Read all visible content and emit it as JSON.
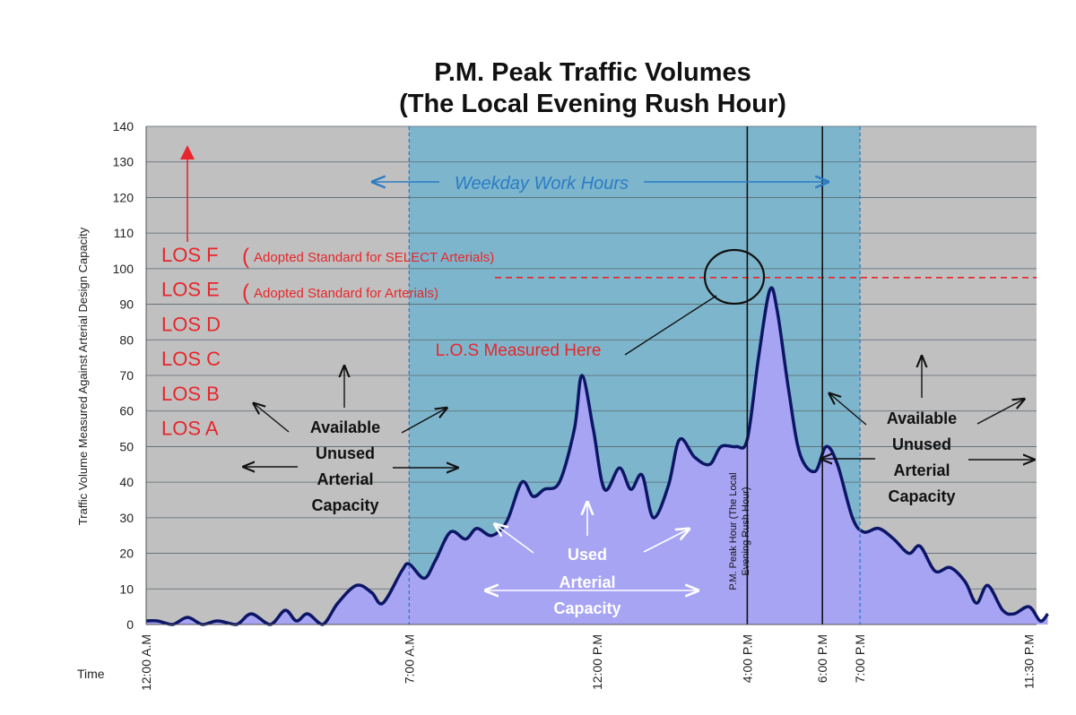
{
  "chart_data": {
    "type": "area",
    "title": [
      "P.M. Peak Traffic Volumes",
      "(The Local Evening Rush Hour)"
    ],
    "ylabel": "Traffic Volume Measured Against Arterial Design Capacity",
    "xlabel": "Time",
    "ylim": [
      0,
      140
    ],
    "yticks": [
      0,
      10,
      20,
      30,
      40,
      50,
      60,
      70,
      80,
      90,
      100,
      110,
      120,
      130,
      140
    ],
    "xlim": [
      0,
      23.7
    ],
    "grid": true,
    "xticks": [
      {
        "hour": 0,
        "label": "12:00 A.M"
      },
      {
        "hour": 7,
        "label": "7:00 A.M"
      },
      {
        "hour": 12,
        "label": "12:00 P.M"
      },
      {
        "hour": 16,
        "label": "4:00 P.M"
      },
      {
        "hour": 18,
        "label": "6:00 P.M"
      },
      {
        "hour": 19,
        "label": "7:00 P.M"
      },
      {
        "hour": 23.5,
        "label": "11:30 P.M"
      }
    ],
    "series": [
      {
        "values": [
          [
            0.0,
            1
          ],
          [
            0.3,
            1
          ],
          [
            0.7,
            0
          ],
          [
            1.1,
            2
          ],
          [
            1.5,
            0
          ],
          [
            1.9,
            1
          ],
          [
            2.4,
            0
          ],
          [
            2.8,
            3
          ],
          [
            3.3,
            0
          ],
          [
            3.7,
            4
          ],
          [
            4.0,
            1
          ],
          [
            4.3,
            3
          ],
          [
            4.7,
            0
          ],
          [
            5.1,
            6
          ],
          [
            5.6,
            11
          ],
          [
            6.0,
            9
          ],
          [
            6.3,
            6
          ],
          [
            6.8,
            15
          ],
          [
            7.0,
            17
          ],
          [
            7.4,
            13
          ],
          [
            7.7,
            18
          ],
          [
            8.1,
            26
          ],
          [
            8.5,
            24
          ],
          [
            8.8,
            27
          ],
          [
            9.2,
            25
          ],
          [
            9.6,
            29
          ],
          [
            10.0,
            40
          ],
          [
            10.3,
            36
          ],
          [
            10.6,
            38
          ],
          [
            11.0,
            40
          ],
          [
            11.4,
            55
          ],
          [
            11.6,
            70
          ],
          [
            11.9,
            55
          ],
          [
            12.2,
            38
          ],
          [
            12.6,
            44
          ],
          [
            12.9,
            38
          ],
          [
            13.2,
            42
          ],
          [
            13.5,
            30
          ],
          [
            13.9,
            39
          ],
          [
            14.2,
            52
          ],
          [
            14.6,
            47
          ],
          [
            15.0,
            45
          ],
          [
            15.3,
            50
          ],
          [
            15.7,
            50
          ],
          [
            16.0,
            52
          ],
          [
            16.3,
            75
          ],
          [
            16.6,
            94
          ],
          [
            16.8,
            88
          ],
          [
            17.1,
            66
          ],
          [
            17.4,
            48
          ],
          [
            17.8,
            43
          ],
          [
            18.1,
            50
          ],
          [
            18.4,
            45
          ],
          [
            18.8,
            30
          ],
          [
            19.1,
            26
          ],
          [
            19.5,
            27
          ],
          [
            19.9,
            24
          ],
          [
            20.3,
            20
          ],
          [
            20.6,
            22
          ],
          [
            21.0,
            15
          ],
          [
            21.4,
            16
          ],
          [
            21.8,
            12
          ],
          [
            22.1,
            6
          ],
          [
            22.4,
            11
          ],
          [
            22.8,
            4
          ],
          [
            23.1,
            3
          ],
          [
            23.5,
            5
          ],
          [
            23.8,
            1
          ],
          [
            24.0,
            3
          ]
        ]
      }
    ],
    "shaded_regions": [
      {
        "label": "Weekday Work Hours",
        "start_hour": 7,
        "end_hour": 19
      }
    ],
    "reference_line": {
      "value": 97.5,
      "style": "dashed",
      "color": "#e8262b"
    },
    "vertical_lines": [
      16,
      18
    ],
    "colors": {
      "plot_bg": "#c0c0c0",
      "work_hours": "#7db6cc",
      "area_fill": "#a7a4f4",
      "area_line": "#0d1666",
      "los_text": "#e8262b",
      "blue_text": "#2b7cc6"
    },
    "annotations": {
      "los_levels": [
        "LOS F",
        "LOS E",
        "LOS D",
        "LOS C",
        "LOS B",
        "LOS A"
      ],
      "std_select": "Adopted Standard for SELECT Arterials)",
      "std_arterials": "Adopted Standard for Arterials)",
      "std_open_paren": "(",
      "measured_here": "L.O.S Measured Here",
      "peak_hour_line1": "P.M. Peak Hour (The Local",
      "peak_hour_line2": "Evening Rush Hour)",
      "available_left": [
        "Available",
        "Unused",
        "Arterial",
        "Capacity"
      ],
      "available_right": [
        "Available",
        "Unused",
        "Arterial",
        "Capacity"
      ],
      "used": [
        "Used",
        "Arterial",
        "Capacity"
      ]
    }
  }
}
